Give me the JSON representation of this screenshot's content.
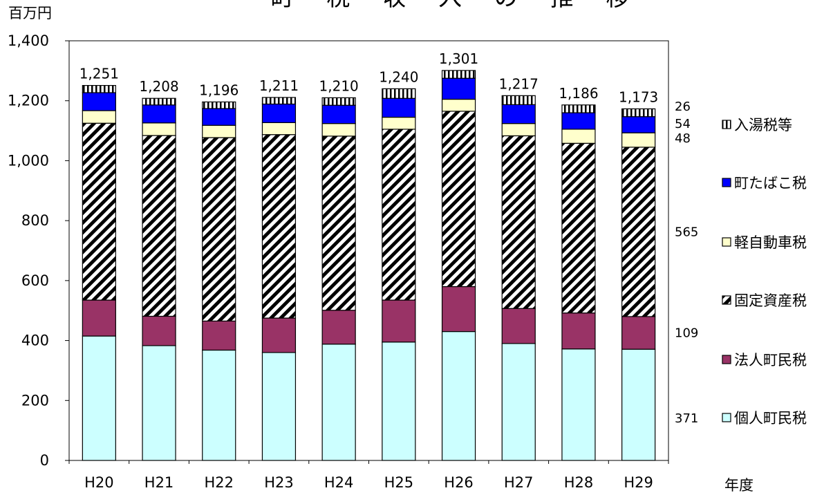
{
  "chart_data": {
    "type": "bar",
    "stacked": true,
    "title": "町 税 収 入 の 推 移",
    "ylabel": "百万円",
    "xlabel": "年度",
    "ylim": [
      0,
      1400
    ],
    "yticks": [
      0,
      200,
      400,
      600,
      800,
      1000,
      1200,
      1400
    ],
    "ytick_labels": [
      "0",
      "200",
      "400",
      "600",
      "800",
      "1,000",
      "1,200",
      "1,400"
    ],
    "categories": [
      "H20",
      "H21",
      "H22",
      "H23",
      "H24",
      "H25",
      "H26",
      "H27",
      "H28",
      "H29"
    ],
    "totals": [
      1251,
      1208,
      1196,
      1211,
      1210,
      1240,
      1301,
      1217,
      1186,
      1173
    ],
    "total_labels": [
      "1,251",
      "1,208",
      "1,196",
      "1,211",
      "1,210",
      "1,240",
      "1,301",
      "1,217",
      "1,186",
      "1,173"
    ],
    "grid": false,
    "legend_position": "right",
    "series": [
      {
        "name": "個人町民税",
        "color": "#ccffff",
        "pattern": "solid",
        "values": [
          415,
          383,
          368,
          360,
          388,
          395,
          430,
          390,
          372,
          371
        ]
      },
      {
        "name": "法人町民税",
        "color": "#993366",
        "pattern": "solid",
        "values": [
          120,
          98,
          97,
          115,
          113,
          140,
          150,
          117,
          120,
          109
        ]
      },
      {
        "name": "固定資産税",
        "color": "#ffffff",
        "pattern": "diagonal-hatch",
        "values": [
          590,
          603,
          612,
          612,
          581,
          570,
          585,
          576,
          566,
          565
        ]
      },
      {
        "name": "軽自動車税",
        "color": "#ffffcc",
        "pattern": "solid",
        "values": [
          42,
          42,
          41,
          40,
          42,
          40,
          40,
          41,
          47,
          48
        ]
      },
      {
        "name": "町たばこ税",
        "color": "#0000ff",
        "pattern": "solid",
        "values": [
          60,
          60,
          56,
          62,
          61,
          63,
          70,
          63,
          55,
          54
        ]
      },
      {
        "name": "入湯税等",
        "color": "#ffffff",
        "pattern": "vertical-lines",
        "values": [
          24,
          22,
          22,
          22,
          25,
          32,
          26,
          30,
          26,
          26
        ]
      }
    ],
    "side_annotations": [
      {
        "series": "入湯税等",
        "label": "26"
      },
      {
        "series": "町たばこ税",
        "label": "54"
      },
      {
        "series": "軽自動車税",
        "label": "48"
      },
      {
        "series": "固定資産税",
        "label": "565"
      },
      {
        "series": "法人町民税",
        "label": "109"
      },
      {
        "series": "個人町民税",
        "label": "371"
      }
    ],
    "legend_order": [
      "入湯税等",
      "町たばこ税",
      "軽自動車税",
      "固定資産税",
      "法人町民税",
      "個人町民税"
    ]
  }
}
